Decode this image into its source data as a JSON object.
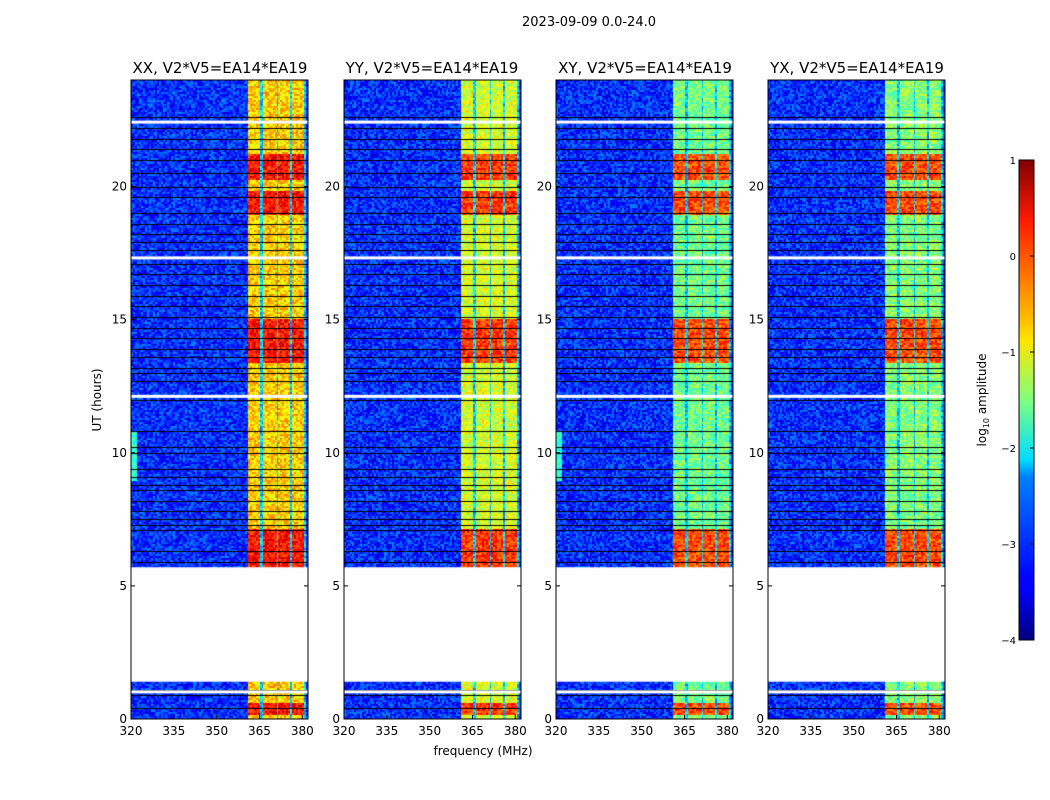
{
  "chart_data": {
    "type": "heatmap",
    "suptitle": "2023-09-09 0.0-24.0",
    "xlabel": "frequency (MHz)",
    "ylabel": "UT (hours)",
    "xlim": [
      320,
      382
    ],
    "ylim": [
      0,
      24
    ],
    "xticks": [
      320,
      335,
      350,
      365,
      380
    ],
    "yticks": [
      0,
      5,
      10,
      15,
      20
    ],
    "colormap": "jet",
    "colorbar": {
      "label": "log",
      "label_sub": "10",
      "label_rest": " amplitude",
      "range": [
        -4,
        1
      ],
      "ticks": [
        {
          "value": 1,
          "text": "1"
        },
        {
          "value": 0,
          "text": "0"
        },
        {
          "value": -1,
          "text": "−1"
        },
        {
          "value": -2,
          "text": "−2"
        },
        {
          "value": -3,
          "text": "−3"
        },
        {
          "value": -4,
          "text": "−4"
        }
      ]
    },
    "panels": [
      {
        "title": "XX, V2*V5=EA14*EA19",
        "band_level": -0.6,
        "hot_level": 0.4,
        "left_artifacts": true
      },
      {
        "title": "YY, V2*V5=EA14*EA19",
        "band_level": -1.0,
        "hot_level": 0.2,
        "left_artifacts": false
      },
      {
        "title": "XY, V2*V5=EA14*EA19",
        "band_level": -1.5,
        "hot_level": 0.1,
        "left_artifacts": true
      },
      {
        "title": "YX, V2*V5=EA14*EA19",
        "band_level": -1.4,
        "hot_level": 0.1,
        "left_artifacts": false
      }
    ],
    "rfi_band_mhz": [
      361,
      381
    ],
    "rfi_channels_mhz": [
      [
        361,
        365
      ],
      [
        366.5,
        370.5
      ],
      [
        371.5,
        375.5
      ],
      [
        376.5,
        380.5
      ]
    ],
    "hot_time_ranges_ut": [
      [
        5.7,
        7.1
      ],
      [
        0.2,
        0.6
      ],
      [
        19.0,
        19.8
      ],
      [
        20.3,
        21.2
      ],
      [
        13.4,
        15.0
      ]
    ],
    "blank_time_ranges_ut": [
      [
        1.4,
        5.7
      ]
    ],
    "flagged_times_ut": [
      0.4,
      0.9,
      1.1,
      2.0,
      5.9,
      6.3,
      7.1,
      7.3,
      7.5,
      7.8,
      8.2,
      8.6,
      8.8,
      9.1,
      9.4,
      10.0,
      10.2,
      10.8,
      12.0,
      12.7,
      13.0,
      13.2,
      13.6,
      13.9,
      14.3,
      14.7,
      15.1,
      15.5,
      15.9,
      16.3,
      16.7,
      17.1,
      17.6,
      17.9,
      18.2,
      18.6,
      19.0,
      19.6,
      20.0,
      20.5,
      21.0,
      21.4,
      21.8,
      22.2,
      22.6
    ]
  }
}
